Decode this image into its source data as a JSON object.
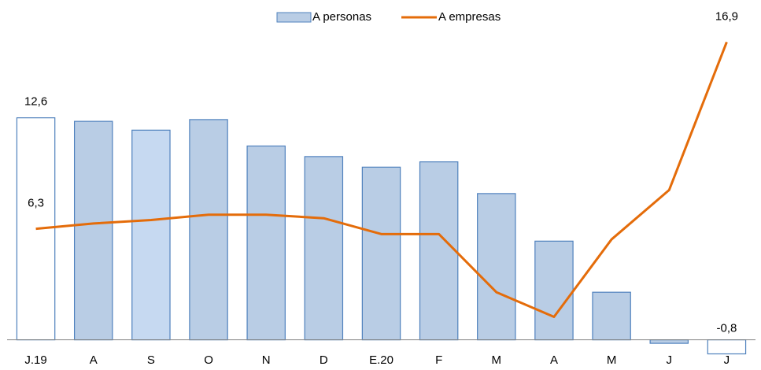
{
  "chart_data": {
    "type": "bar-line",
    "categories": [
      "J.19",
      "A",
      "S",
      "O",
      "N",
      "D",
      "E.20",
      "F",
      "M",
      "A",
      "M",
      "J",
      "J"
    ],
    "series": [
      {
        "name": "A personas",
        "type": "bar",
        "color": "#b9cde5",
        "stroke": "#4f81bd",
        "point_colors": [
          "#ffffff",
          "#b9cde5",
          "#c6d9f1",
          "#b9cde5",
          "#b9cde5",
          "#b9cde5",
          "#b9cde5",
          "#b9cde5",
          "#b9cde5",
          "#b9cde5",
          "#b9cde5",
          "#b9cde5",
          "#ffffff"
        ],
        "values": [
          12.6,
          12.4,
          11.9,
          12.5,
          11.0,
          10.4,
          9.8,
          10.1,
          8.3,
          5.6,
          2.7,
          -0.2,
          -0.8
        ],
        "value_labels": [
          "12,6",
          null,
          null,
          null,
          null,
          null,
          null,
          null,
          null,
          null,
          null,
          null,
          "-0,8"
        ]
      },
      {
        "name": "A empresas",
        "type": "line",
        "color": "#e46c0a",
        "values": [
          6.3,
          6.6,
          6.8,
          7.1,
          7.1,
          6.9,
          6.0,
          6.0,
          2.7,
          1.3,
          5.7,
          8.5,
          16.9
        ],
        "value_labels": [
          "6,3",
          null,
          null,
          null,
          null,
          null,
          null,
          null,
          null,
          null,
          null,
          null,
          "16,9"
        ]
      }
    ],
    "ylim": [
      -1,
      17.5
    ]
  }
}
